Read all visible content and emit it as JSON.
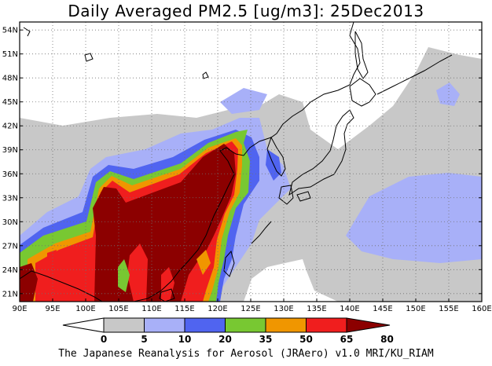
{
  "title": "Daily Averaged PM2.5 [ug/m3]: 25Dec2013",
  "footer": "The Japanese Reanalysis for Aerosol (JRAero) v1.0 MRI/KU_RIAM",
  "map": {
    "lon_range": [
      90,
      160
    ],
    "lat_range": [
      20,
      55
    ],
    "lon_ticks": [
      "90E",
      "95E",
      "100E",
      "105E",
      "110E",
      "115E",
      "120E",
      "125E",
      "130E",
      "135E",
      "140E",
      "145E",
      "150E",
      "155E",
      "160E"
    ],
    "lat_ticks": [
      "54N",
      "51N",
      "48N",
      "45N",
      "42N",
      "39N",
      "36N",
      "33N",
      "30N",
      "27N",
      "24N",
      "21N"
    ],
    "grid": "dotted"
  },
  "colorbar": {
    "labels": [
      "0",
      "5",
      "10",
      "20",
      "35",
      "50",
      "65",
      "80"
    ],
    "colors": [
      "#ffffff",
      "#c8c8c8",
      "#a8b0f8",
      "#5064f0",
      "#78c832",
      "#f09600",
      "#f01e1e",
      "#8c0000"
    ]
  }
}
